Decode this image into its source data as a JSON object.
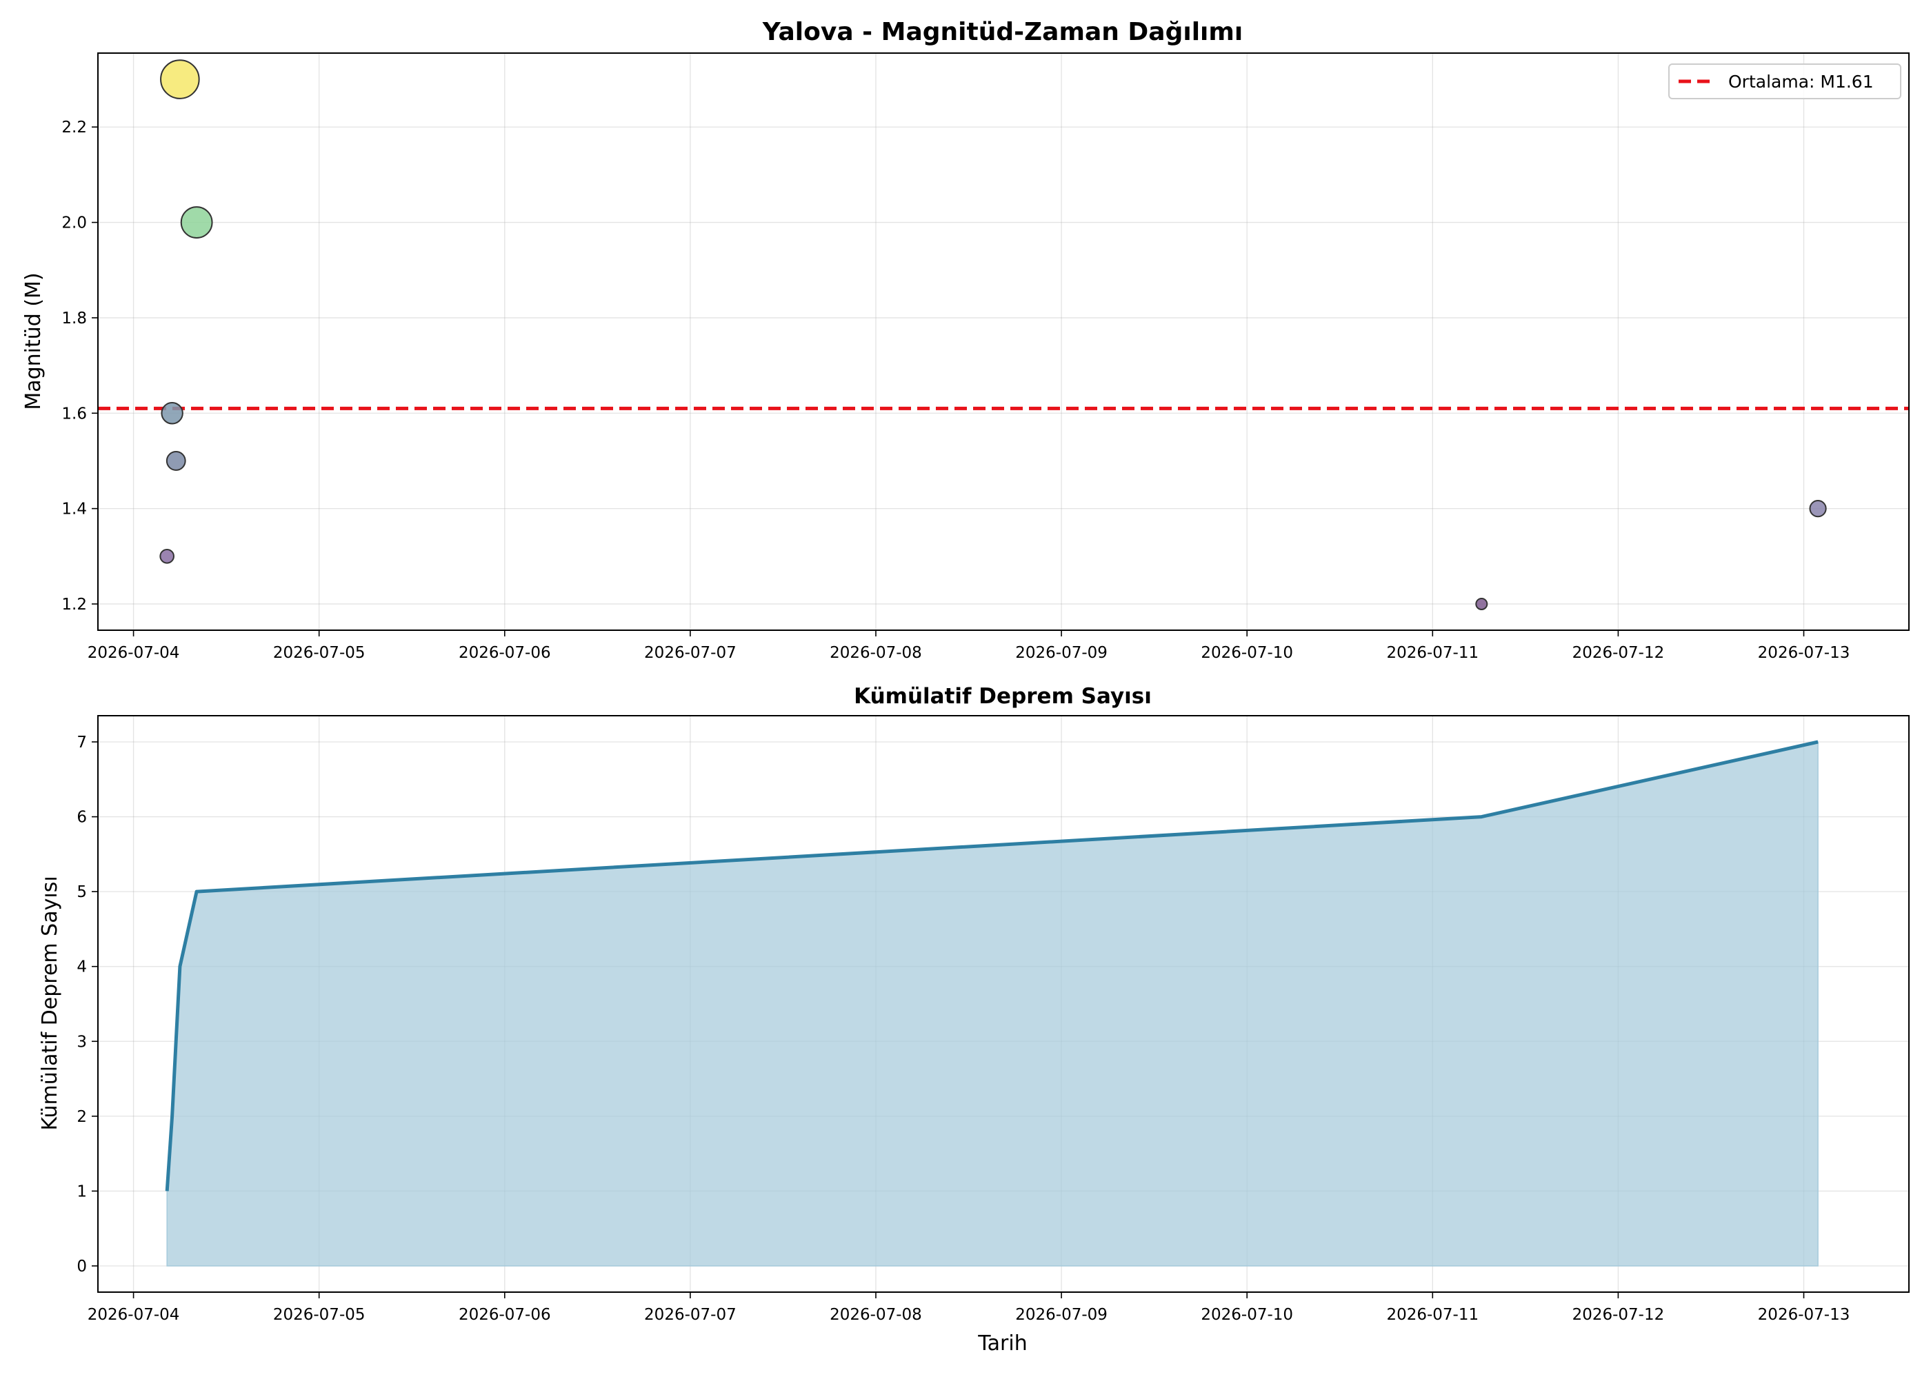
{
  "chart_data": [
    {
      "type": "scatter",
      "title": "Yalova - Magnitüd-Zaman Dağılımı",
      "xlabel": "",
      "ylabel": "Magnitüd (M)",
      "x_tick_labels": [
        "2026-07-04",
        "2026-07-05",
        "2026-07-06",
        "2026-07-07",
        "2026-07-08",
        "2026-07-09",
        "2026-07-10",
        "2026-07-11",
        "2026-07-12",
        "2026-07-13"
      ],
      "y_ticks": [
        1.2,
        1.4,
        1.6,
        1.8,
        2.0,
        2.2
      ],
      "xlim": [
        "2026-07-03 19:24",
        "2026-07-13 13:36"
      ],
      "ylim": [
        1.145,
        2.355
      ],
      "grid": true,
      "legend_position": "top-right",
      "points": [
        {
          "x": "2026-07-04 04:20",
          "y": 1.3,
          "color": "#8a6ea3"
        },
        {
          "x": "2026-07-04 05:00",
          "y": 1.6,
          "color": "#7e98ad"
        },
        {
          "x": "2026-07-04 05:30",
          "y": 1.5,
          "color": "#7b8aa6"
        },
        {
          "x": "2026-07-04 06:00",
          "y": 2.3,
          "color": "#f6e86a"
        },
        {
          "x": "2026-07-04 08:10",
          "y": 2.0,
          "color": "#8fd49a"
        },
        {
          "x": "2026-07-11 06:20",
          "y": 1.2,
          "color": "#7e5a8e"
        },
        {
          "x": "2026-07-13 01:50",
          "y": 1.4,
          "color": "#8a84ab"
        }
      ],
      "mean_line": {
        "value": 1.61,
        "legend_label": "Ortalama: M1.61",
        "color": "#e8121a"
      }
    },
    {
      "type": "area",
      "title": "Kümülatif Deprem Sayısı",
      "xlabel": "Tarih",
      "ylabel": "Kümülatif Deprem Sayısı",
      "x_tick_labels": [
        "2026-07-04",
        "2026-07-05",
        "2026-07-06",
        "2026-07-07",
        "2026-07-08",
        "2026-07-09",
        "2026-07-10",
        "2026-07-11",
        "2026-07-12",
        "2026-07-13"
      ],
      "y_ticks": [
        0,
        1,
        2,
        3,
        4,
        5,
        6,
        7
      ],
      "xlim": [
        "2026-07-03 19:24",
        "2026-07-13 13:36"
      ],
      "ylim": [
        -0.35,
        7.35
      ],
      "grid": true,
      "x": [
        "2026-07-04 04:20",
        "2026-07-04 05:00",
        "2026-07-04 05:30",
        "2026-07-04 06:00",
        "2026-07-04 08:10",
        "2026-07-11 06:20",
        "2026-07-13 01:50"
      ],
      "values": [
        1,
        2,
        3,
        4,
        5,
        6,
        7
      ],
      "line_color": "#2e7fa3",
      "fill_color": "#a6cadb"
    }
  ]
}
